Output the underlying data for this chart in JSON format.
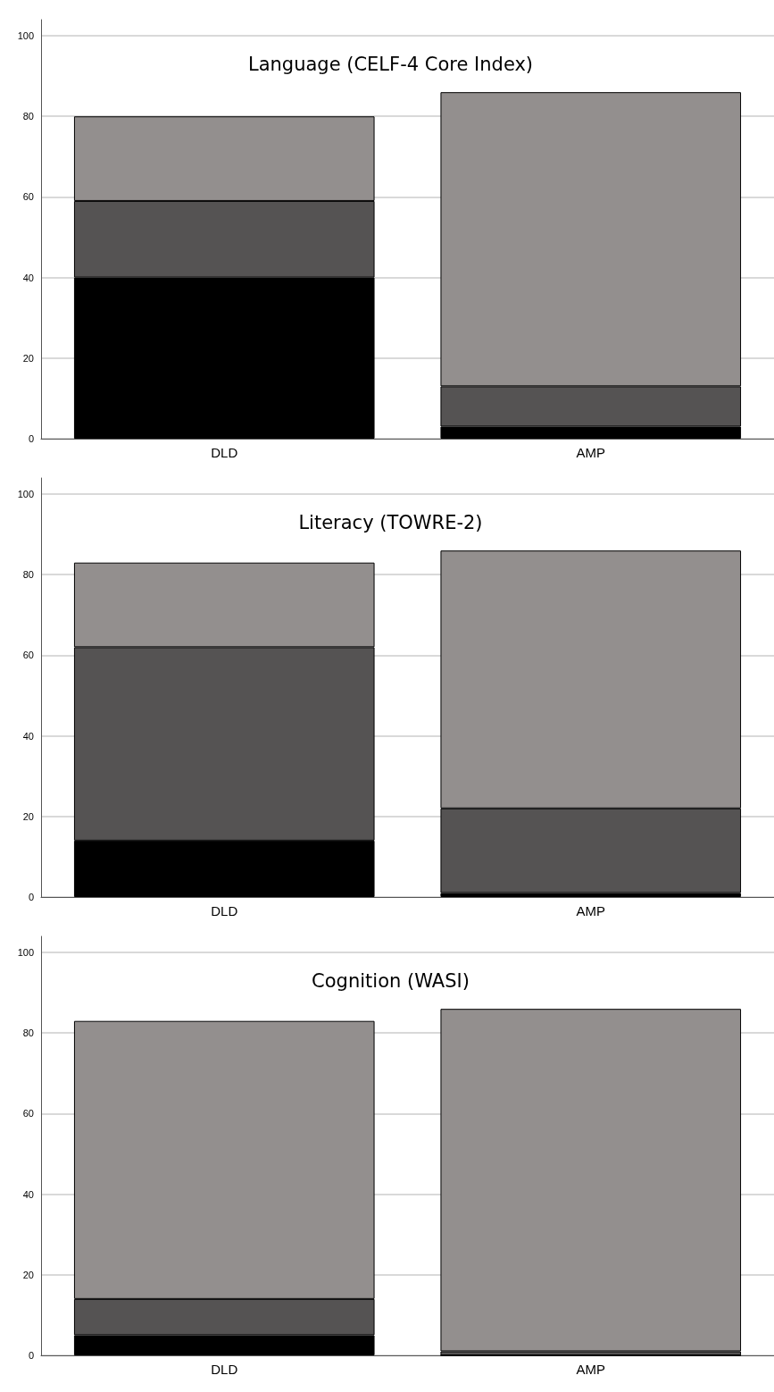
{
  "chart_data": [
    {
      "type": "bar",
      "title": "Language (CELF-4 Core Index)",
      "categories": [
        "DLD",
        "AMP"
      ],
      "stacked": true,
      "ylim": [
        0,
        104
      ],
      "yticks": [
        0,
        20,
        40,
        60,
        80,
        100
      ],
      "grid": "y",
      "series": [
        {
          "color": "#000000",
          "values": [
            40,
            3
          ]
        },
        {
          "color": "#555353",
          "values": [
            19,
            10
          ]
        },
        {
          "color": "#938f8e",
          "values": [
            21,
            73
          ]
        }
      ]
    },
    {
      "type": "bar",
      "title": "Literacy (TOWRE-2)",
      "categories": [
        "DLD",
        "AMP"
      ],
      "stacked": true,
      "ylim": [
        0,
        104
      ],
      "yticks": [
        0,
        20,
        40,
        60,
        80,
        100
      ],
      "grid": "y",
      "series": [
        {
          "color": "#000000",
          "values": [
            14,
            1
          ]
        },
        {
          "color": "#555353",
          "values": [
            48,
            21
          ]
        },
        {
          "color": "#938f8e",
          "values": [
            21,
            64
          ]
        }
      ]
    },
    {
      "type": "bar",
      "title": "Cognition (WASI)",
      "categories": [
        "DLD",
        "AMP"
      ],
      "stacked": true,
      "ylim": [
        0,
        104
      ],
      "yticks": [
        0,
        20,
        40,
        60,
        80,
        100
      ],
      "grid": "y",
      "series": [
        {
          "color": "#000000",
          "values": [
            5,
            0
          ]
        },
        {
          "color": "#555353",
          "values": [
            9,
            1
          ]
        },
        {
          "color": "#938f8e",
          "values": [
            69,
            85
          ]
        }
      ]
    }
  ]
}
